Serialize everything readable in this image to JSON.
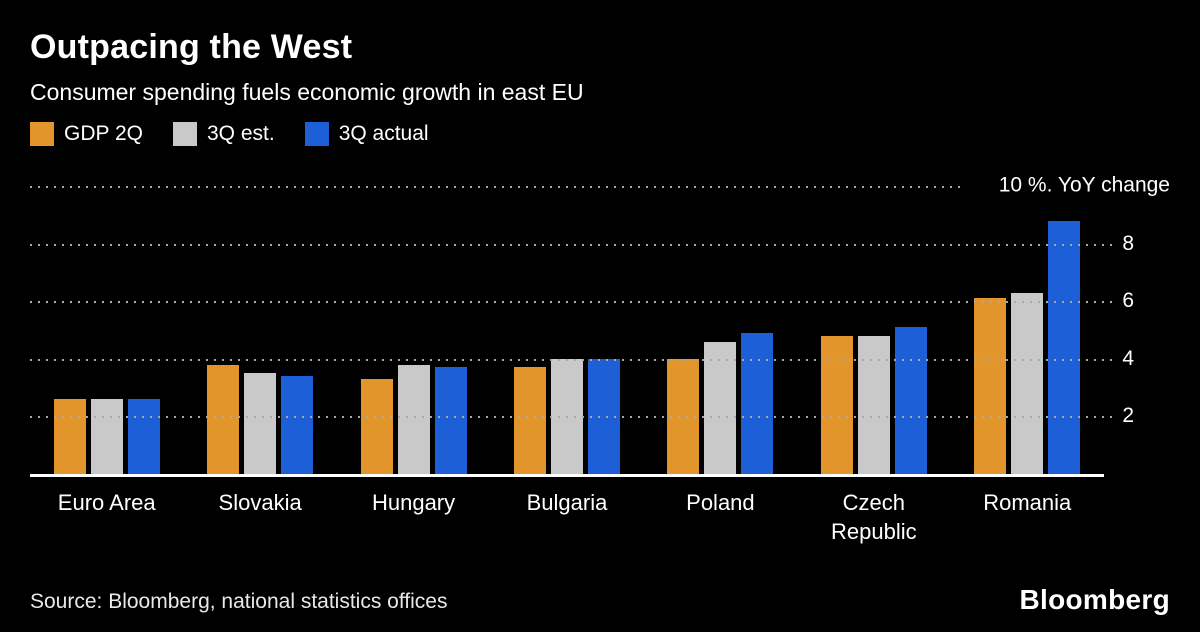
{
  "header": {
    "title": "Outpacing the West",
    "subtitle": "Consumer spending fuels economic growth in east EU"
  },
  "legend": [
    {
      "label": "GDP 2Q",
      "color": "#e1952b"
    },
    {
      "label": "3Q est.",
      "color": "#c9c9c9"
    },
    {
      "label": "3Q actual",
      "color": "#1d5fd6"
    }
  ],
  "chart_data": {
    "type": "bar",
    "title": "Outpacing the West",
    "subtitle": "Consumer spending fuels economic growth in east EU",
    "categories": [
      "Euro Area",
      "Slovakia",
      "Hungary",
      "Bulgaria",
      "Poland",
      "Czech Republic",
      "Romania"
    ],
    "series": [
      {
        "name": "GDP 2Q",
        "color": "#e1952b",
        "values": [
          2.6,
          3.8,
          3.3,
          3.7,
          4.0,
          4.8,
          6.1
        ]
      },
      {
        "name": "3Q est.",
        "color": "#c9c9c9",
        "values": [
          2.6,
          3.5,
          3.8,
          4.0,
          4.6,
          4.8,
          6.3
        ]
      },
      {
        "name": "3Q actual",
        "color": "#1d5fd6",
        "values": [
          2.6,
          3.4,
          3.7,
          4.0,
          4.9,
          5.1,
          8.8
        ]
      }
    ],
    "ylim": [
      0,
      10
    ],
    "yticks": [
      2,
      4,
      6,
      8
    ],
    "top_axis_label": "10 %. YoY change",
    "grid": "dotted horizontal",
    "legend_position": "top-left",
    "background": "#000000"
  },
  "footer": {
    "source": "Source: Bloomberg, national statistics offices",
    "brand": "Bloomberg"
  }
}
